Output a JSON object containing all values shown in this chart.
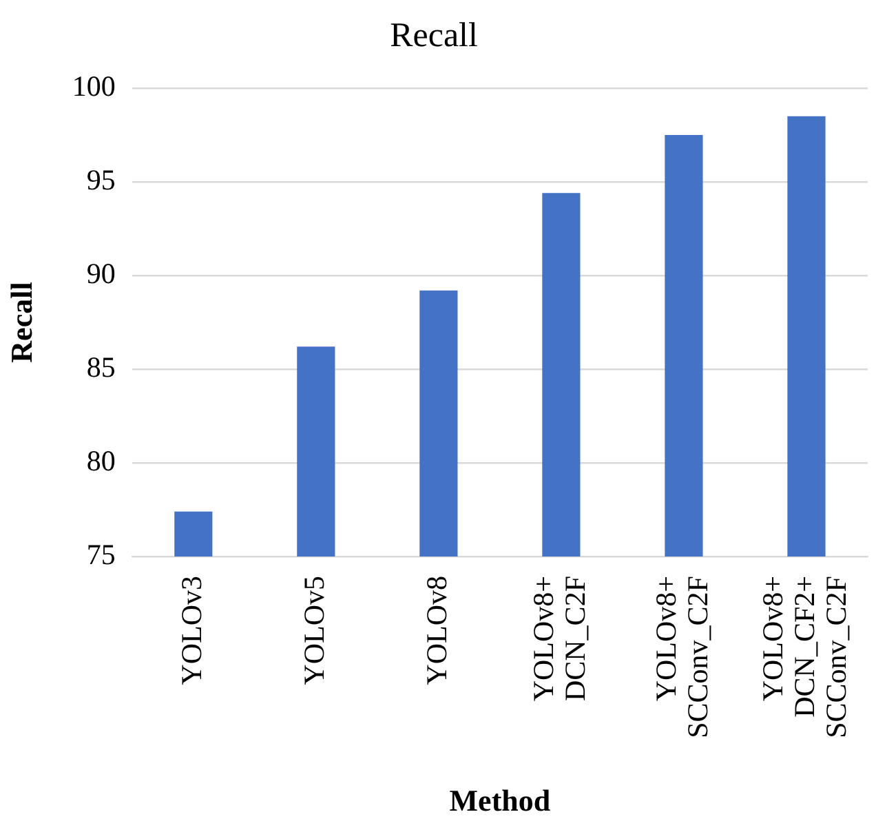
{
  "chart_data": {
    "type": "bar",
    "title": "Recall",
    "xlabel": "Method",
    "ylabel": "Recall",
    "categories": [
      "YOLOv3",
      "YOLOv5",
      "YOLOv8",
      "YOLOv8+\nDCN_C2F",
      "YOLOv8+\nSCConv_C2F",
      "YOLOv8+\nDCN_CF2+\nSCConv_C2F"
    ],
    "values": [
      77.4,
      86.2,
      89.2,
      94.4,
      97.5,
      98.5
    ],
    "color": "#4472c4",
    "ylim": [
      75,
      100
    ],
    "yticks": [
      75,
      80,
      85,
      90,
      95,
      100
    ],
    "grid": "y",
    "legend": false
  }
}
